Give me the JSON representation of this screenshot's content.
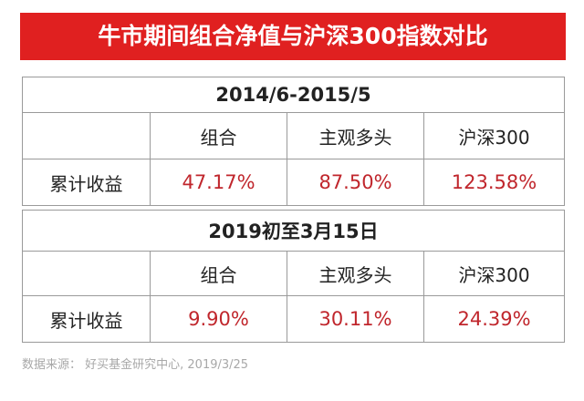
{
  "title": "牛市期间组合净值与沪深300指数对比",
  "tables": [
    {
      "period": "2014/6-2015/5",
      "headers": [
        "",
        "组合",
        "主观多头",
        "沪深300"
      ],
      "row_label": "累计收益",
      "values": [
        "47.17%",
        "87.50%",
        "123.58%"
      ]
    },
    {
      "period": "2019初至3月15日",
      "headers": [
        "",
        "组合",
        "主观多头",
        "沪深300"
      ],
      "row_label": "累计收益",
      "values": [
        "9.90%",
        "30.11%",
        "24.39%"
      ]
    }
  ],
  "source": "数据来源：  好买基金研究中心, 2019/3/25",
  "colors": {
    "title_background": "#e02020",
    "title_text": "#ffffff",
    "value_text": "#c0262c",
    "border": "#9a9a9a",
    "source_text": "#a8a8a8"
  }
}
